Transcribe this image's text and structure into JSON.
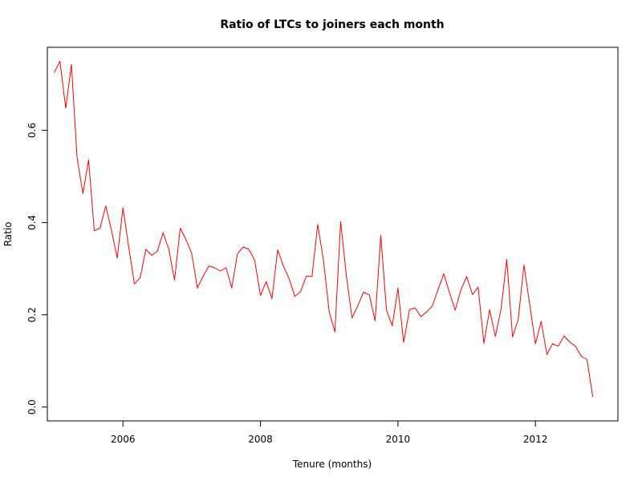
{
  "chart_data": {
    "type": "line",
    "title": "Ratio of LTCs to joiners each month",
    "xlabel": "Tenure (months)",
    "ylabel": "Ratio",
    "xlim": [
      2004.9,
      2013.2
    ],
    "ylim": [
      -0.03,
      0.78
    ],
    "x_ticks": [
      2006,
      2008,
      2010,
      2012
    ],
    "x_tick_labels": [
      "2006",
      "2008",
      "2010",
      "2012"
    ],
    "y_ticks": [
      0.0,
      0.2,
      0.4,
      0.6
    ],
    "y_tick_labels": [
      "0.0",
      "0.2",
      "0.4",
      "0.6"
    ],
    "grid": false,
    "series_color": "#ff0000",
    "x": [
      2005.0,
      2005.083,
      2005.167,
      2005.25,
      2005.333,
      2005.417,
      2005.5,
      2005.583,
      2005.667,
      2005.75,
      2005.833,
      2005.917,
      2006.0,
      2006.083,
      2006.167,
      2006.25,
      2006.333,
      2006.417,
      2006.5,
      2006.583,
      2006.667,
      2006.75,
      2006.833,
      2006.917,
      2007.0,
      2007.083,
      2007.167,
      2007.25,
      2007.333,
      2007.417,
      2007.5,
      2007.583,
      2007.667,
      2007.75,
      2007.833,
      2007.917,
      2008.0,
      2008.083,
      2008.167,
      2008.25,
      2008.333,
      2008.417,
      2008.5,
      2008.583,
      2008.667,
      2008.75,
      2008.833,
      2008.917,
      2009.0,
      2009.083,
      2009.167,
      2009.25,
      2009.333,
      2009.417,
      2009.5,
      2009.583,
      2009.667,
      2009.75,
      2009.833,
      2009.917,
      2010.0,
      2010.083,
      2010.167,
      2010.25,
      2010.333,
      2010.417,
      2010.5,
      2010.583,
      2010.667,
      2010.75,
      2010.833,
      2010.917,
      2011.0,
      2011.083,
      2011.167,
      2011.25,
      2011.333,
      2011.417,
      2011.5,
      2011.583,
      2011.667,
      2011.75,
      2011.833,
      2011.917,
      2012.0,
      2012.083,
      2012.167,
      2012.25,
      2012.333,
      2012.417,
      2012.5,
      2012.583,
      2012.667,
      2012.75,
      2012.833
    ],
    "y": [
      0.725,
      0.75,
      0.648,
      0.743,
      0.54,
      0.463,
      0.536,
      0.382,
      0.388,
      0.436,
      0.383,
      0.323,
      0.432,
      0.348,
      0.267,
      0.28,
      0.342,
      0.329,
      0.338,
      0.378,
      0.342,
      0.275,
      0.388,
      0.363,
      0.333,
      0.258,
      0.284,
      0.306,
      0.302,
      0.295,
      0.302,
      0.258,
      0.333,
      0.347,
      0.342,
      0.318,
      0.242,
      0.272,
      0.235,
      0.341,
      0.306,
      0.278,
      0.24,
      0.25,
      0.284,
      0.283,
      0.396,
      0.318,
      0.207,
      0.163,
      0.402,
      0.285,
      0.193,
      0.22,
      0.249,
      0.243,
      0.187,
      0.372,
      0.21,
      0.176,
      0.258,
      0.14,
      0.211,
      0.215,
      0.196,
      0.206,
      0.219,
      0.254,
      0.289,
      0.248,
      0.21,
      0.254,
      0.283,
      0.244,
      0.26,
      0.138,
      0.211,
      0.153,
      0.213,
      0.32,
      0.152,
      0.19,
      0.308,
      0.222,
      0.137,
      0.186,
      0.114,
      0.137,
      0.132,
      0.154,
      0.141,
      0.132,
      0.11,
      0.103,
      0.022
    ]
  }
}
